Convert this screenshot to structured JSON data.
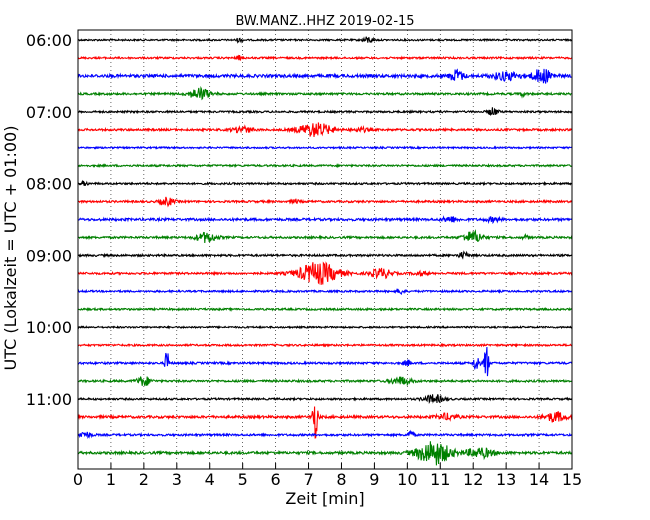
{
  "chart_data": {
    "type": "line",
    "title": "BW.MANZ..HHZ 2019-02-15",
    "xlabel": "Zeit  [min]",
    "ylabel": "UTC (Lokalzeit = UTC + 01:00)",
    "xlim": [
      0,
      15
    ],
    "x_ticks": [
      "0",
      "1",
      "2",
      "3",
      "4",
      "5",
      "6",
      "7",
      "8",
      "9",
      "10",
      "11",
      "12",
      "13",
      "14",
      "15"
    ],
    "y_ticks": [
      "06:00",
      "07:00",
      "08:00",
      "09:00",
      "10:00",
      "11:00"
    ],
    "grid": "x-dotted",
    "colors": {
      "black": "#000000",
      "red": "#ff0000",
      "blue": "#0000ff",
      "green": "#008000"
    },
    "color_cycle": [
      "black",
      "red",
      "blue",
      "green"
    ],
    "traces": [
      {
        "start": "06:00",
        "noise": 0.8,
        "events": [
          {
            "t": 4.9,
            "a": 2,
            "w": 0.1
          },
          {
            "t": 8.8,
            "a": 3,
            "w": 0.15
          }
        ]
      },
      {
        "start": "06:15",
        "noise": 0.9,
        "events": [
          {
            "t": 4.9,
            "a": 2,
            "w": 0.1
          }
        ]
      },
      {
        "start": "06:30",
        "noise": 1.5,
        "events": [
          {
            "t": 11.5,
            "a": 6,
            "w": 0.2
          },
          {
            "t": 13.0,
            "a": 4,
            "w": 0.4
          },
          {
            "t": 14.1,
            "a": 7,
            "w": 0.3
          }
        ]
      },
      {
        "start": "06:45",
        "noise": 1.0,
        "events": [
          {
            "t": 3.7,
            "a": 6,
            "w": 0.3
          },
          {
            "t": 13.5,
            "a": 2,
            "w": 0.1
          }
        ]
      },
      {
        "start": "07:00",
        "noise": 0.9,
        "events": [
          {
            "t": 12.6,
            "a": 4,
            "w": 0.15
          }
        ]
      },
      {
        "start": "07:15",
        "noise": 1.0,
        "events": [
          {
            "t": 5.0,
            "a": 3,
            "w": 0.3
          },
          {
            "t": 7.2,
            "a": 7,
            "w": 0.5
          },
          {
            "t": 8.6,
            "a": 2,
            "w": 0.2
          }
        ]
      },
      {
        "start": "07:30",
        "noise": 0.8,
        "events": []
      },
      {
        "start": "07:45",
        "noise": 0.9,
        "events": []
      },
      {
        "start": "08:00",
        "noise": 0.9,
        "events": [
          {
            "t": 0.2,
            "a": 2,
            "w": 0.1
          }
        ]
      },
      {
        "start": "08:15",
        "noise": 1.0,
        "events": [
          {
            "t": 2.7,
            "a": 4,
            "w": 0.2
          },
          {
            "t": 6.6,
            "a": 2,
            "w": 0.1
          }
        ]
      },
      {
        "start": "08:30",
        "noise": 1.2,
        "events": [
          {
            "t": 11.3,
            "a": 3,
            "w": 0.2
          },
          {
            "t": 12.6,
            "a": 2,
            "w": 0.2
          }
        ]
      },
      {
        "start": "08:45",
        "noise": 1.0,
        "events": [
          {
            "t": 3.9,
            "a": 5,
            "w": 0.3
          },
          {
            "t": 12.0,
            "a": 6,
            "w": 0.3
          },
          {
            "t": 13.6,
            "a": 2,
            "w": 0.1
          }
        ]
      },
      {
        "start": "09:00",
        "noise": 1.0,
        "events": [
          {
            "t": 11.7,
            "a": 3,
            "w": 0.15
          }
        ]
      },
      {
        "start": "09:15",
        "noise": 1.0,
        "events": [
          {
            "t": 7.3,
            "a": 11,
            "w": 0.6
          },
          {
            "t": 9.2,
            "a": 5,
            "w": 0.3
          },
          {
            "t": 10.4,
            "a": 2,
            "w": 0.2
          }
        ]
      },
      {
        "start": "09:30",
        "noise": 0.9,
        "events": [
          {
            "t": 9.8,
            "a": 3,
            "w": 0.1
          }
        ]
      },
      {
        "start": "09:45",
        "noise": 0.9,
        "events": []
      },
      {
        "start": "10:00",
        "noise": 0.8,
        "events": []
      },
      {
        "start": "10:15",
        "noise": 0.9,
        "events": []
      },
      {
        "start": "10:30",
        "noise": 1.0,
        "events": [
          {
            "t": 2.7,
            "a": 16,
            "w": 0.05
          },
          {
            "t": 10.0,
            "a": 3,
            "w": 0.1
          },
          {
            "t": 12.1,
            "a": 10,
            "w": 0.08
          },
          {
            "t": 12.4,
            "a": 24,
            "w": 0.06
          }
        ]
      },
      {
        "start": "10:45",
        "noise": 1.0,
        "events": [
          {
            "t": 2.0,
            "a": 5,
            "w": 0.2
          },
          {
            "t": 9.8,
            "a": 4,
            "w": 0.3
          }
        ]
      },
      {
        "start": "11:00",
        "noise": 0.9,
        "events": [
          {
            "t": 10.8,
            "a": 4,
            "w": 0.3
          }
        ]
      },
      {
        "start": "11:15",
        "noise": 1.2,
        "events": [
          {
            "t": 7.2,
            "a": 22,
            "w": 0.08
          },
          {
            "t": 11.2,
            "a": 3,
            "w": 0.3
          },
          {
            "t": 14.5,
            "a": 5,
            "w": 0.3
          }
        ]
      },
      {
        "start": "11:30",
        "noise": 1.0,
        "events": [
          {
            "t": 0.2,
            "a": 3,
            "w": 0.2
          },
          {
            "t": 10.1,
            "a": 4,
            "w": 0.1
          }
        ]
      },
      {
        "start": "11:45",
        "noise": 1.2,
        "events": [
          {
            "t": 10.8,
            "a": 12,
            "w": 0.5
          },
          {
            "t": 12.2,
            "a": 5,
            "w": 0.4
          }
        ]
      }
    ]
  }
}
